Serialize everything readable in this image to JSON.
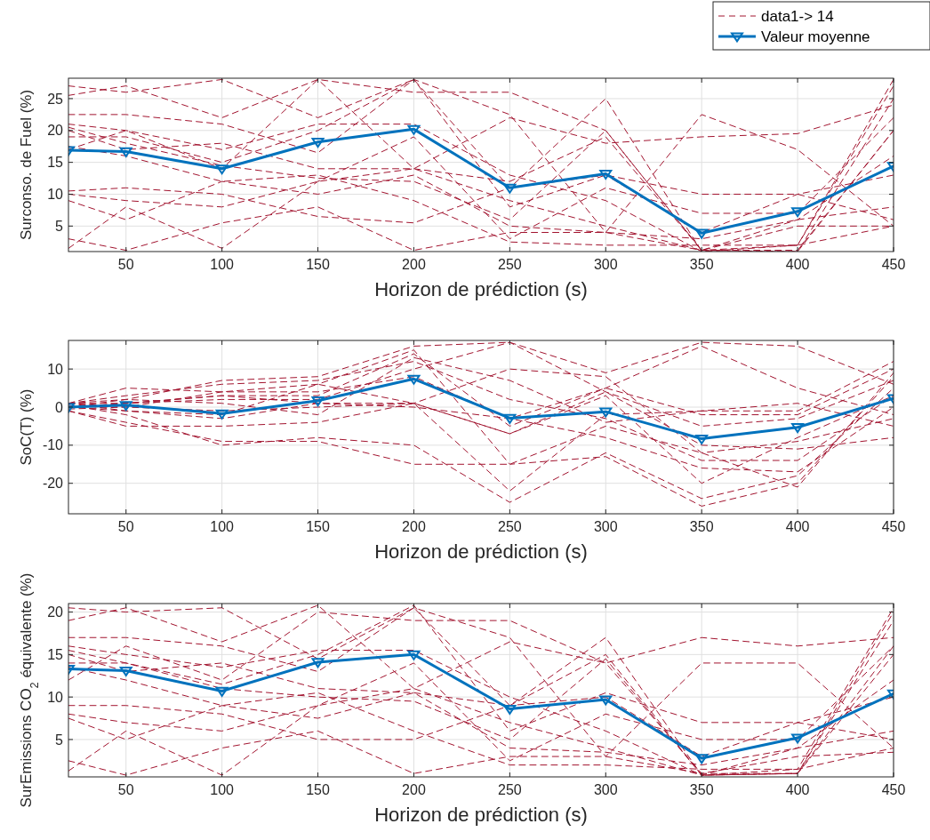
{
  "chart_data": [
    {
      "type": "line",
      "xlabel": "Horizon de prédiction (s)",
      "ylabel": "Surconso. de Fuel (%)",
      "x": [
        20,
        50,
        100,
        150,
        200,
        250,
        300,
        350,
        400,
        450
      ],
      "xlim": [
        20,
        450
      ],
      "xticks": [
        50,
        100,
        150,
        200,
        250,
        300,
        350,
        400,
        450
      ],
      "ylim": [
        1,
        28.2
      ],
      "yticks": [
        5,
        10,
        15,
        20,
        25
      ],
      "grid": true,
      "legend": "top right",
      "series": [
        {
          "name": "data1-> 14",
          "color": "#a2142f",
          "line_style": "dashed",
          "marker": "none",
          "values": [
            27,
            26,
            28,
            22,
            28,
            11,
            25,
            1,
            2,
            28
          ]
        },
        {
          "color": "#a2142f",
          "line_style": "dashed",
          "marker": "none",
          "values": [
            25.5,
            27,
            22,
            28,
            14,
            22,
            18,
            19,
            19.5,
            24
          ]
        },
        {
          "color": "#a2142f",
          "line_style": "dashed",
          "marker": "none",
          "values": [
            22.5,
            22.5,
            21,
            16.5,
            28,
            22.5,
            4,
            22.5,
            17,
            5
          ]
        },
        {
          "color": "#a2142f",
          "line_style": "dashed",
          "marker": "none",
          "values": [
            21,
            20,
            17,
            21,
            21,
            13,
            9,
            1,
            1,
            25
          ]
        },
        {
          "color": "#a2142f",
          "line_style": "dashed",
          "marker": "none",
          "values": [
            20.5,
            18,
            14.5,
            12.5,
            12,
            6,
            20,
            1.2,
            2,
            27
          ]
        },
        {
          "color": "#a2142f",
          "line_style": "dashed",
          "marker": "none",
          "values": [
            20,
            17,
            18,
            14,
            14,
            12,
            19,
            1.2,
            1,
            20
          ]
        },
        {
          "color": "#a2142f",
          "line_style": "dashed",
          "marker": "none",
          "values": [
            19,
            19,
            15,
            20,
            28,
            8,
            13,
            10,
            10,
            6
          ]
        },
        {
          "color": "#a2142f",
          "line_style": "dashed",
          "marker": "none",
          "values": [
            17.5,
            16,
            12,
            13,
            9,
            2.5,
            2,
            2,
            2,
            5
          ]
        },
        {
          "color": "#a2142f",
          "line_style": "dashed",
          "marker": "none",
          "values": [
            10.5,
            11,
            10,
            6.5,
            5.5,
            11,
            13,
            4,
            10,
            13
          ]
        },
        {
          "color": "#a2142f",
          "line_style": "dashed",
          "marker": "none",
          "values": [
            10,
            9,
            8,
            12,
            14,
            9,
            5,
            1.2,
            6,
            16
          ]
        },
        {
          "color": "#a2142f",
          "line_style": "dashed",
          "marker": "none",
          "values": [
            9,
            6,
            12,
            10,
            13,
            5,
            4,
            3,
            6,
            8
          ]
        },
        {
          "color": "#a2142f",
          "line_style": "dashed",
          "marker": "none",
          "values": [
            3,
            1.2,
            5.5,
            8,
            1.2,
            4,
            4,
            1.2,
            1.2,
            20
          ]
        },
        {
          "color": "#a2142f",
          "line_style": "dashed",
          "marker": "none",
          "values": [
            1.5,
            8,
            1.5,
            12,
            19,
            3,
            11,
            7,
            7,
            22
          ]
        },
        {
          "color": "#a2142f",
          "line_style": "dashed",
          "marker": "none",
          "values": [
            17,
            20,
            14,
            28,
            26,
            26,
            20,
            1.2,
            5,
            5
          ]
        },
        {
          "name": "Valeur moyenne",
          "color": "#0072bd",
          "line_style": "solid",
          "marker": "triangle",
          "values": [
            16.9,
            16.7,
            14,
            18.2,
            20.2,
            11,
            13.2,
            3.9,
            7.3,
            14.4
          ]
        }
      ]
    },
    {
      "type": "line",
      "xlabel": "Horizon de prédiction (s)",
      "ylabel": "SoC(T) (%)",
      "x": [
        20,
        50,
        100,
        150,
        200,
        250,
        300,
        350,
        400,
        450
      ],
      "xlim": [
        20,
        450
      ],
      "xticks": [
        50,
        100,
        150,
        200,
        250,
        300,
        350,
        400,
        450
      ],
      "ylim": [
        -28,
        17.5
      ],
      "yticks": [
        -20,
        -10,
        0,
        10
      ],
      "grid": true,
      "series": [
        {
          "color": "#a2142f",
          "line_style": "dashed",
          "marker": "none",
          "values": [
            1,
            2,
            7,
            8,
            16,
            17,
            9,
            17,
            16,
            6
          ]
        },
        {
          "color": "#a2142f",
          "line_style": "dashed",
          "marker": "none",
          "values": [
            1,
            5,
            4,
            6,
            15,
            -15,
            -13,
            -26,
            -20,
            8
          ]
        },
        {
          "color": "#a2142f",
          "line_style": "dashed",
          "marker": "none",
          "values": [
            0.5,
            -2,
            -10,
            -8,
            -10,
            -25,
            -12,
            -24,
            -18,
            5
          ]
        },
        {
          "color": "#a2142f",
          "line_style": "dashed",
          "marker": "none",
          "values": [
            -1,
            -4,
            -9,
            -9,
            -15,
            -15,
            -5,
            -12,
            -21,
            9
          ]
        },
        {
          "color": "#a2142f",
          "line_style": "dashed",
          "marker": "none",
          "values": [
            1,
            1,
            3,
            3,
            14,
            -5,
            5,
            16,
            5,
            -2
          ]
        },
        {
          "color": "#a2142f",
          "line_style": "dashed",
          "marker": "none",
          "values": [
            0,
            -1,
            -3,
            1,
            1,
            -7,
            4,
            -10,
            -11,
            -8
          ]
        },
        {
          "color": "#a2142f",
          "line_style": "dashed",
          "marker": "none",
          "values": [
            1,
            3,
            6,
            7,
            12,
            2,
            -3,
            -14,
            -14,
            3
          ]
        },
        {
          "color": "#a2142f",
          "line_style": "dashed",
          "marker": "none",
          "values": [
            -1,
            -5,
            -5,
            -4,
            1,
            -22,
            -2,
            -1,
            1,
            -5
          ]
        },
        {
          "color": "#a2142f",
          "line_style": "dashed",
          "marker": "none",
          "values": [
            0,
            1,
            2,
            2,
            10,
            17,
            4,
            -5,
            -3,
            7
          ]
        },
        {
          "color": "#a2142f",
          "line_style": "dashed",
          "marker": "none",
          "values": [
            1,
            0,
            -1,
            0,
            1,
            10,
            8,
            -12,
            -9,
            -3
          ]
        },
        {
          "color": "#a2142f",
          "line_style": "dashed",
          "marker": "none",
          "values": [
            -0.5,
            0,
            4,
            4,
            8,
            -3,
            -8,
            -16,
            -17,
            0
          ]
        },
        {
          "color": "#a2142f",
          "line_style": "dashed",
          "marker": "none",
          "values": [
            0,
            2,
            1,
            -2,
            13,
            7,
            -4,
            -1,
            -1,
            12
          ]
        },
        {
          "color": "#a2142f",
          "line_style": "dashed",
          "marker": "none",
          "values": [
            1,
            -1,
            -2,
            6,
            1,
            -7,
            3,
            -20,
            -8,
            3
          ]
        },
        {
          "color": "#a2142f",
          "line_style": "dashed",
          "marker": "none",
          "values": [
            0,
            1,
            3,
            1,
            0,
            -3,
            5,
            -2,
            -2,
            10
          ]
        },
        {
          "color": "#0072bd",
          "line_style": "solid",
          "marker": "triangle",
          "values": [
            0,
            0.5,
            -1.7,
            1.7,
            7.4,
            -2.9,
            -1.2,
            -8.3,
            -5.3,
            2.3
          ]
        }
      ]
    },
    {
      "type": "line",
      "xlabel": "Horizon de prédiction (s)",
      "ylabel": "SurEmissions CO$_{2}$ équivalente (%)",
      "x": [
        20,
        50,
        100,
        150,
        200,
        250,
        300,
        350,
        400,
        450
      ],
      "xlim": [
        20,
        450
      ],
      "xticks": [
        50,
        100,
        150,
        200,
        250,
        300,
        350,
        400,
        450
      ],
      "ylim": [
        0.6,
        21
      ],
      "yticks": [
        5,
        10,
        15,
        20
      ],
      "grid": true,
      "series": [
        {
          "color": "#a2142f",
          "line_style": "dashed",
          "marker": "none",
          "values": [
            20.5,
            20,
            20.5,
            14.5,
            20.5,
            9,
            17,
            0.8,
            1.5,
            20.5
          ]
        },
        {
          "color": "#a2142f",
          "line_style": "dashed",
          "marker": "none",
          "values": [
            19,
            20.5,
            16.5,
            20.8,
            11,
            16.5,
            14,
            17,
            16,
            17
          ]
        },
        {
          "color": "#a2142f",
          "line_style": "dashed",
          "marker": "none",
          "values": [
            17,
            17,
            16,
            13,
            20.5,
            17,
            3,
            14,
            14,
            4
          ]
        },
        {
          "color": "#a2142f",
          "line_style": "dashed",
          "marker": "none",
          "values": [
            16,
            15,
            13.5,
            15.5,
            15.5,
            10,
            6,
            0.8,
            1,
            19
          ]
        },
        {
          "color": "#a2142f",
          "line_style": "dashed",
          "marker": "none",
          "values": [
            15.5,
            14,
            11,
            10,
            9.5,
            5,
            14.5,
            0.8,
            1,
            20
          ]
        },
        {
          "color": "#a2142f",
          "line_style": "dashed",
          "marker": "none",
          "values": [
            15,
            13,
            14,
            11,
            10.5,
            9,
            15,
            0.8,
            1,
            16
          ]
        },
        {
          "color": "#a2142f",
          "line_style": "dashed",
          "marker": "none",
          "values": [
            14,
            14,
            11.5,
            15,
            20.8,
            6,
            10.5,
            7,
            7,
            5
          ]
        },
        {
          "color": "#a2142f",
          "line_style": "dashed",
          "marker": "none",
          "values": [
            13.5,
            12,
            9,
            10.5,
            6,
            2,
            2,
            1.5,
            1.5,
            4
          ]
        },
        {
          "color": "#a2142f",
          "line_style": "dashed",
          "marker": "none",
          "values": [
            9,
            9,
            8,
            5,
            5,
            9,
            10,
            3,
            7,
            10
          ]
        },
        {
          "color": "#a2142f",
          "line_style": "dashed",
          "marker": "none",
          "values": [
            8,
            7,
            6,
            9,
            11,
            7,
            4,
            0.8,
            4,
            12
          ]
        },
        {
          "color": "#a2142f",
          "line_style": "dashed",
          "marker": "none",
          "values": [
            7.5,
            5,
            9,
            7.5,
            10.5,
            4,
            3.5,
            2,
            4,
            6
          ]
        },
        {
          "color": "#a2142f",
          "line_style": "dashed",
          "marker": "none",
          "values": [
            2.5,
            0.8,
            4,
            6,
            1,
            3,
            3,
            1,
            1,
            15
          ]
        },
        {
          "color": "#a2142f",
          "line_style": "dashed",
          "marker": "none",
          "values": [
            1.3,
            6,
            0.8,
            9,
            14,
            2.5,
            8,
            5,
            5,
            16
          ]
        },
        {
          "color": "#a2142f",
          "line_style": "dashed",
          "marker": "none",
          "values": [
            12,
            16,
            12,
            20,
            19,
            19,
            14,
            1,
            3,
            3.5
          ]
        },
        {
          "color": "#0072bd",
          "line_style": "solid",
          "marker": "triangle",
          "values": [
            13.3,
            13.1,
            10.7,
            14.1,
            15,
            8.6,
            9.7,
            2.8,
            5.2,
            10.4
          ]
        }
      ]
    }
  ]
}
